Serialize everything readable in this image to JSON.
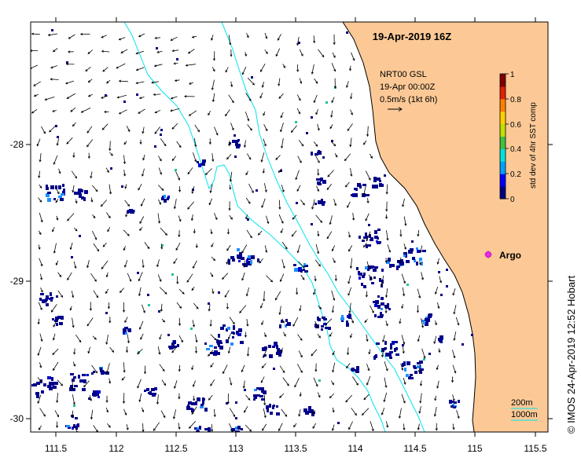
{
  "map": {
    "title": "19-Apr-2019 16Z",
    "current_info": {
      "line1": "NRT00 GSL",
      "line2": "19-Apr 00:00Z",
      "line3": "0.5m/s (1kt 6h)"
    },
    "argo_label": "Argo",
    "credit": "© IMOS 24-Apr-2019 12:52 Hobart",
    "isobath_labels": [
      "200m",
      "1000m"
    ],
    "land_color": "#fcc996",
    "isobath_color": "#00e5ee",
    "argo_color": "#e52ee5",
    "x_ticks": [
      "111.5",
      "112",
      "112.5",
      "113",
      "113.5",
      "114",
      "114.5",
      "115",
      "115.5"
    ],
    "y_ticks": [
      "-28",
      "-29",
      "-30"
    ],
    "colorbar": {
      "label": "std dev of 4hr SST comp",
      "ticks": [
        "0",
        "0.2",
        "0.4",
        "0.6",
        "0.8",
        "1"
      ],
      "colors": [
        "#000080",
        "#0000ff",
        "#00a0ff",
        "#00e0e0",
        "#40c040",
        "#c0e000",
        "#ffd000",
        "#ff8000",
        "#e02000",
        "#800000"
      ]
    }
  }
}
